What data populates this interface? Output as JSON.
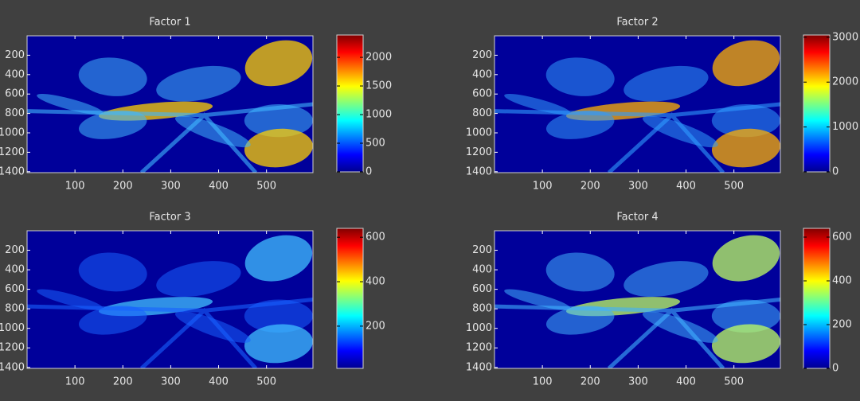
{
  "chart_data": [
    {
      "type": "heatmap",
      "title": "Factor 1",
      "colormap": "jet",
      "xlim": [
        0,
        597
      ],
      "xticks": [
        100,
        200,
        300,
        400,
        500
      ],
      "ylim": [
        1410,
        0
      ],
      "yticks": [
        200,
        400,
        600,
        800,
        1000,
        1200,
        1400
      ],
      "clim": [
        0,
        2390
      ],
      "cticks": [
        0,
        500,
        1000,
        1500,
        2000
      ]
    },
    {
      "type": "heatmap",
      "title": "Factor 2",
      "colormap": "jet",
      "xlim": [
        0,
        597
      ],
      "xticks": [
        100,
        200,
        300,
        400,
        500
      ],
      "ylim": [
        1410,
        0
      ],
      "yticks": [
        200,
        400,
        600,
        800,
        1000,
        1200,
        1400
      ],
      "clim": [
        0,
        3050
      ],
      "cticks": [
        0,
        1000,
        2000,
        3000
      ]
    },
    {
      "type": "heatmap",
      "title": "Factor 3",
      "colormap": "jet",
      "xlim": [
        0,
        597
      ],
      "xticks": [
        100,
        200,
        300,
        400,
        500
      ],
      "ylim": [
        1410,
        0
      ],
      "yticks": [
        200,
        400,
        600,
        800,
        1000,
        1200,
        1400
      ],
      "clim": [
        10,
        640
      ],
      "cticks": [
        200,
        400,
        600
      ]
    },
    {
      "type": "heatmap",
      "title": "Factor 4",
      "colormap": "jet",
      "xlim": [
        0,
        597
      ],
      "xticks": [
        100,
        200,
        300,
        400,
        500
      ],
      "ylim": [
        1410,
        0
      ],
      "yticks": [
        200,
        400,
        600,
        800,
        1000,
        1200,
        1400
      ],
      "clim": [
        0,
        640
      ],
      "cticks": [
        0,
        200,
        400,
        600
      ]
    }
  ]
}
